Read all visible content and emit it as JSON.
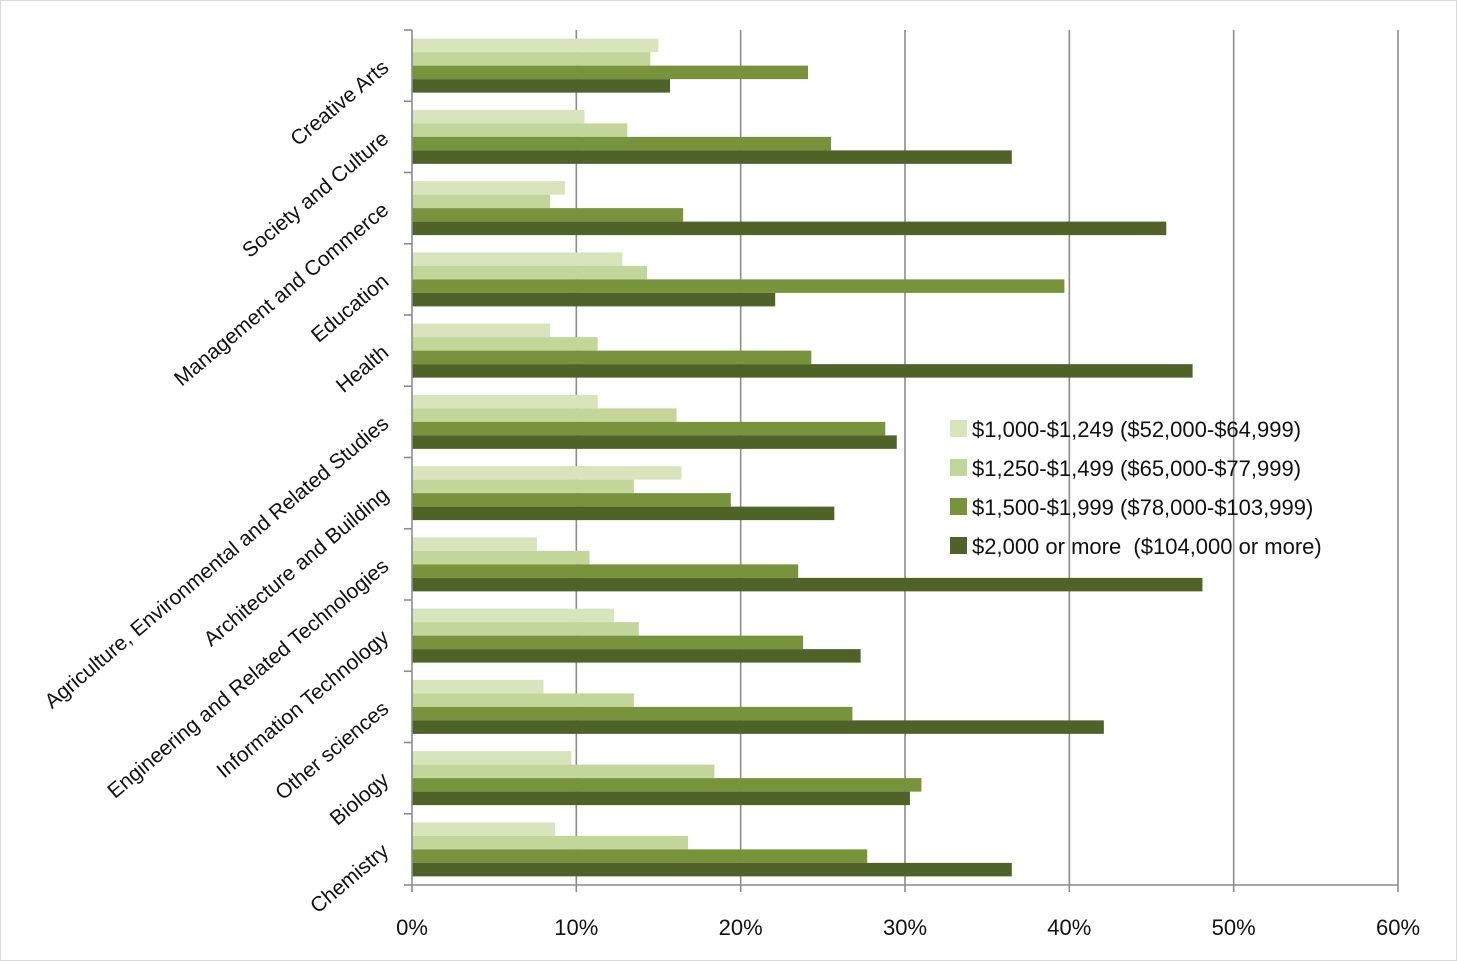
{
  "chart_data": {
    "type": "bar",
    "orientation": "horizontal",
    "categories": [
      "Creative Arts",
      "Society and Culture",
      "Management and Commerce",
      "Education",
      "Health",
      "Agriculture, Environmental and Related Studies",
      "Architecture and Building",
      "Engineering and Related Technologies",
      "Information Technology",
      "Other sciences",
      "Biology",
      "Chemistry"
    ],
    "series": [
      {
        "name": "$1,000-$1,249 ($52,000-$64,999)",
        "color": "#d8e4bc",
        "values": [
          15.0,
          10.5,
          9.3,
          12.8,
          8.4,
          11.3,
          16.4,
          7.6,
          12.3,
          8.0,
          9.7,
          8.7
        ]
      },
      {
        "name": "$1,250-$1,499 ($65,000-$77,999)",
        "color": "#c2d69a",
        "values": [
          14.5,
          13.1,
          8.4,
          14.3,
          11.3,
          16.1,
          13.5,
          10.8,
          13.8,
          13.5,
          18.4,
          16.8
        ]
      },
      {
        "name": "$1,500-$1,999 ($78,000-$103,999)",
        "color": "#77933c",
        "values": [
          24.1,
          25.5,
          16.5,
          39.7,
          24.3,
          28.8,
          19.4,
          23.5,
          23.8,
          26.8,
          31.0,
          27.7
        ]
      },
      {
        "name": "$2,000 or more  ($104,000 or more)",
        "color": "#4f6228",
        "values": [
          15.7,
          36.5,
          45.9,
          22.1,
          47.5,
          29.5,
          25.7,
          48.1,
          27.3,
          42.1,
          30.3,
          36.5
        ]
      }
    ],
    "x_ticks": [
      "0%",
      "10%",
      "20%",
      "30%",
      "40%",
      "50%",
      "60%"
    ],
    "xlim": [
      0,
      60
    ],
    "xlabel": "",
    "ylabel": "",
    "grid": "vertical",
    "legend": "right"
  }
}
